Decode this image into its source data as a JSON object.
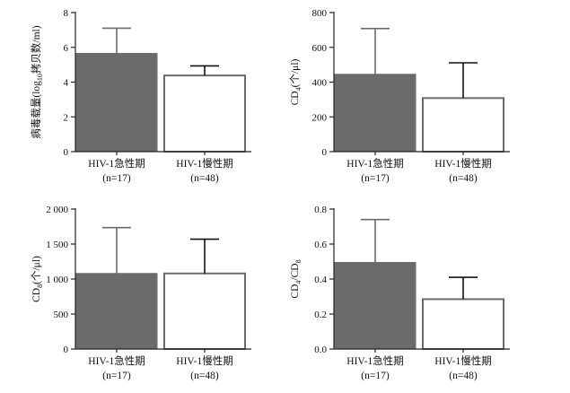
{
  "colors": {
    "acute": "#6b6b6b",
    "chronic": "#ffffff",
    "chronic_stroke": "#6b6b6b",
    "acute_err": "#6b6b6b",
    "chronic_err": "#111111",
    "axis": "#222222"
  },
  "chart_data": [
    {
      "type": "bar",
      "panel": "top-left",
      "ylabel_main": "病毒载量(log",
      "ylabel_sub": "10",
      "ylabel_tail": "拷贝数/ml)",
      "ylim": [
        0,
        8
      ],
      "yticks": [
        0,
        2,
        4,
        6,
        8
      ],
      "ytick_labels": [
        "0",
        "2",
        "4",
        "6",
        "8"
      ],
      "categories": [
        "HIV-1急性期",
        "HIV-1慢性期"
      ],
      "n_labels": [
        "(n=17)",
        "(n=48)"
      ],
      "values": [
        5.65,
        4.38
      ],
      "errors": [
        1.45,
        0.55
      ]
    },
    {
      "type": "bar",
      "panel": "top-right",
      "ylabel_main": "CD",
      "ylabel_sub": "4",
      "ylabel_tail": "(个/μl)",
      "ylim": [
        0,
        800
      ],
      "yticks": [
        0,
        200,
        400,
        600,
        800
      ],
      "ytick_labels": [
        "0",
        "200",
        "400",
        "600",
        "800"
      ],
      "categories": [
        "HIV-1急性期",
        "HIV-1慢性期"
      ],
      "n_labels": [
        "(n=17)",
        "(n=48)"
      ],
      "values": [
        445,
        308
      ],
      "errors": [
        263,
        203
      ]
    },
    {
      "type": "bar",
      "panel": "bottom-left",
      "ylabel_main": "CD",
      "ylabel_sub": "8",
      "ylabel_tail": "(个/μl)",
      "ylim": [
        0,
        2000
      ],
      "yticks": [
        0,
        500,
        1000,
        1500,
        2000
      ],
      "ytick_labels": [
        "0",
        "500",
        "1 000",
        "1 500",
        "2 000"
      ],
      "categories": [
        "HIV-1急性期",
        "HIV-1慢性期"
      ],
      "n_labels": [
        "(n=17)",
        "(n=48)"
      ],
      "values": [
        1080,
        1080
      ],
      "errors": [
        655,
        490
      ]
    },
    {
      "type": "bar",
      "panel": "bottom-right",
      "ylabel_main": "CD",
      "ylabel_sub": "4",
      "ylabel_tail": "/CD",
      "ylabel_sub2": "8",
      "ylim": [
        0,
        0.8
      ],
      "yticks": [
        0,
        0.2,
        0.4,
        0.6,
        0.8
      ],
      "ytick_labels": [
        "0.0",
        "0.2",
        "0.4",
        "0.6",
        "0.8"
      ],
      "categories": [
        "HIV-1急性期",
        "HIV-1慢性期"
      ],
      "n_labels": [
        "(n=17)",
        "(n=48)"
      ],
      "values": [
        0.495,
        0.285
      ],
      "errors": [
        0.245,
        0.125
      ]
    }
  ]
}
